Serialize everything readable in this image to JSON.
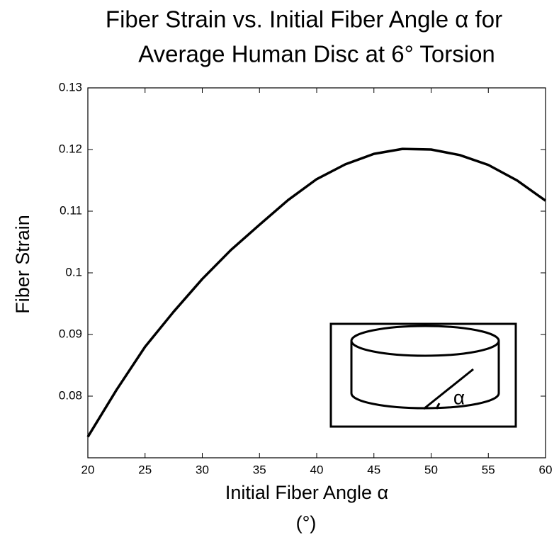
{
  "chart_data": {
    "type": "line",
    "title_lines": [
      "Fiber Strain vs. Initial Fiber Angle α for",
      "Average Human Disc at 6° Torsion"
    ],
    "x_label_lines": [
      "Initial Fiber Angle α",
      "(°)"
    ],
    "y_label": "Fiber Strain",
    "inset_label": "α",
    "x": [
      20,
      22.5,
      25,
      27.5,
      30,
      32.5,
      35,
      37.5,
      40,
      42.5,
      45,
      47.5,
      50,
      52.5,
      55,
      57.5,
      60
    ],
    "series": [
      {
        "color": "#000000",
        "values": [
          0.0734,
          0.081,
          0.088,
          0.0937,
          0.099,
          0.1037,
          0.1078,
          0.1118,
          0.1152,
          0.1176,
          0.1193,
          0.1201,
          0.12,
          0.1191,
          0.1175,
          0.115,
          0.1117
        ]
      }
    ],
    "xlim": [
      20,
      60
    ],
    "xticks": [
      20,
      25,
      30,
      35,
      40,
      45,
      50,
      55,
      60
    ],
    "ylim": [
      0.07,
      0.13
    ],
    "yticks": [
      0.08,
      0.09,
      0.1,
      0.11,
      0.12,
      0.13
    ],
    "grid": false
  }
}
